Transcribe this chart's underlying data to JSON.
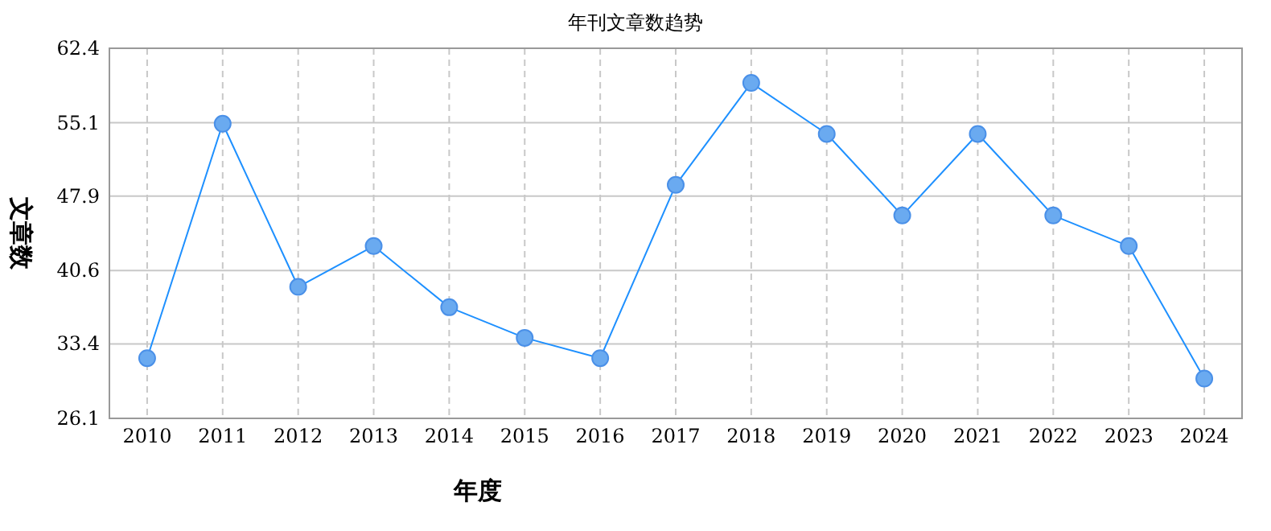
{
  "chart_data": {
    "type": "line",
    "title": "年刊文章数趋势",
    "xlabel": "年度",
    "ylabel": "文章数",
    "categories": [
      "2010",
      "2011",
      "2012",
      "2013",
      "2014",
      "2015",
      "2016",
      "2017",
      "2018",
      "2019",
      "2020",
      "2021",
      "2022",
      "2023",
      "2024"
    ],
    "series": [
      {
        "color": "#1e90ff",
        "values": [
          32,
          55,
          39,
          43,
          37,
          34,
          32,
          49,
          59,
          54,
          46,
          54,
          46,
          43,
          30
        ]
      }
    ],
    "ylim": [
      26.1,
      62.4
    ],
    "yticks": [
      26.1,
      33.4,
      40.6,
      47.9,
      55.1,
      62.4
    ],
    "grid": true,
    "marker": "circle"
  }
}
